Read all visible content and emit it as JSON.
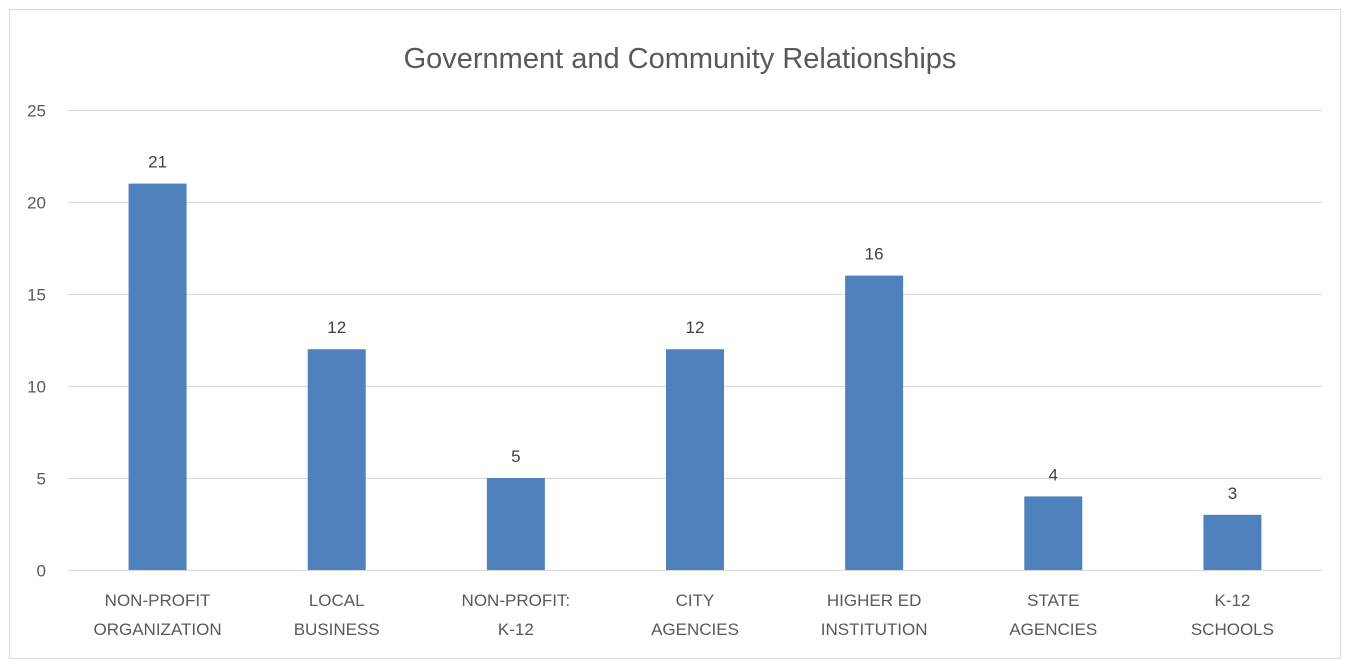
{
  "chart_data": {
    "type": "bar",
    "title": "Government and Community Relationships",
    "categories": [
      [
        "NON-PROFIT",
        "ORGANIZATION"
      ],
      [
        "LOCAL",
        "BUSINESS"
      ],
      [
        "NON-PROFIT:",
        "K-12"
      ],
      [
        "CITY",
        "AGENCIES"
      ],
      [
        "HIGHER ED",
        "INSTITUTION"
      ],
      [
        "STATE",
        "AGENCIES"
      ],
      [
        "K-12",
        "SCHOOLS"
      ]
    ],
    "values": [
      21,
      12,
      5,
      12,
      16,
      4,
      3
    ],
    "data_labels": [
      "21",
      "12",
      "5",
      "12",
      "16",
      "4",
      "3"
    ],
    "ylim": [
      0,
      25
    ],
    "yticks": [
      0,
      5,
      10,
      15,
      20,
      25
    ],
    "ytick_labels": [
      "0",
      "5",
      "10",
      "15",
      "20",
      "25"
    ],
    "xlabel": "",
    "ylabel": "",
    "grid": true,
    "legend": "none",
    "colors": {
      "bar": "#4f81bd",
      "grid": "#d9d9d9",
      "text": "#595959"
    }
  }
}
